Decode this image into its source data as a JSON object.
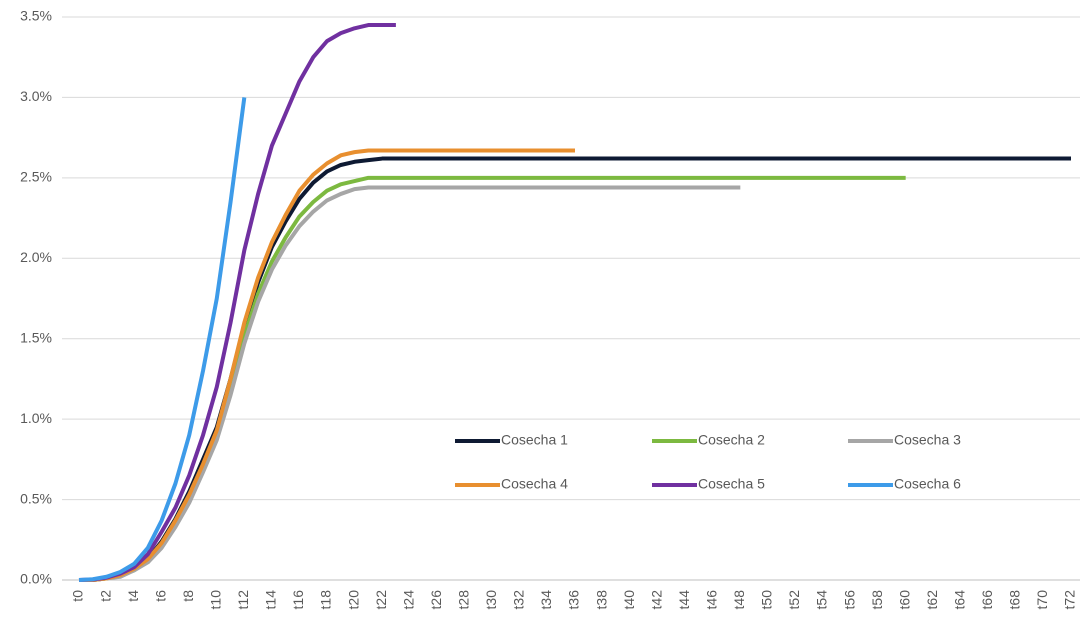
{
  "chart_data": {
    "type": "line",
    "categories": [
      "t0",
      null,
      "t2",
      null,
      "t4",
      null,
      "t6",
      null,
      "t8",
      null,
      "t10",
      null,
      "t12",
      null,
      "t14",
      null,
      "t16",
      null,
      "t18",
      null,
      "t20",
      null,
      "t22",
      null,
      "t24",
      null,
      "t26",
      null,
      "t28",
      null,
      "t30",
      null,
      "t32",
      null,
      "t34",
      null,
      "t36",
      null,
      "t38",
      null,
      "t40",
      null,
      "t42",
      null,
      "t44",
      null,
      "t46",
      null,
      "t48",
      null,
      "t50",
      null,
      "t52",
      null,
      "t54",
      null,
      "t56",
      null,
      "t58",
      null,
      "t60",
      null,
      "t62",
      null,
      "t64",
      null,
      "t66",
      null,
      "t68",
      null,
      "t70",
      null,
      "t72"
    ],
    "ylim": [
      0,
      3.5
    ],
    "yticks": [
      {
        "value": 0,
        "label": "0.0%"
      },
      {
        "value": 0.5,
        "label": "0.5%"
      },
      {
        "value": 1,
        "label": "1.0%"
      },
      {
        "value": 1.5,
        "label": "1.5%"
      },
      {
        "value": 2,
        "label": "2.0%"
      },
      {
        "value": 2.5,
        "label": "2.5%"
      },
      {
        "value": 3,
        "label": "3.0%"
      },
      {
        "value": 3.5,
        "label": "3.5%"
      }
    ],
    "grid": true,
    "legend": "lower right",
    "series": [
      {
        "name": "Cosecha 1",
        "color": "#0e1a33",
        "values": [
          0,
          0,
          0.01,
          0.03,
          0.07,
          0.13,
          0.24,
          0.38,
          0.55,
          0.75,
          0.95,
          1.25,
          1.58,
          1.85,
          2.07,
          2.23,
          2.37,
          2.47,
          2.54,
          2.58,
          2.6,
          2.61,
          2.62,
          2.62,
          2.62,
          2.62,
          2.62,
          2.62,
          2.62,
          2.62,
          2.62,
          2.62,
          2.62,
          2.62,
          2.62,
          2.62,
          2.62,
          2.62,
          2.62,
          2.62,
          2.62,
          2.62,
          2.62,
          2.62,
          2.62,
          2.62,
          2.62,
          2.62,
          2.62,
          2.62,
          2.62,
          2.62,
          2.62,
          2.62,
          2.62,
          2.62,
          2.62,
          2.62,
          2.62,
          2.62,
          2.62,
          2.62,
          2.62,
          2.62,
          2.62,
          2.62,
          2.62,
          2.62,
          2.62,
          2.62,
          2.62,
          2.62,
          2.62
        ]
      },
      {
        "name": "Cosecha 2",
        "color": "#7cb940",
        "values": [
          0,
          0,
          0.01,
          0.03,
          0.06,
          0.12,
          0.22,
          0.35,
          0.5,
          0.7,
          0.9,
          1.2,
          1.52,
          1.78,
          1.98,
          2.13,
          2.26,
          2.35,
          2.42,
          2.46,
          2.48,
          2.5,
          2.5,
          2.5,
          2.5,
          2.5,
          2.5,
          2.5,
          2.5,
          2.5,
          2.5,
          2.5,
          2.5,
          2.5,
          2.5,
          2.5,
          2.5,
          2.5,
          2.5,
          2.5,
          2.5,
          2.5,
          2.5,
          2.5,
          2.5,
          2.5,
          2.5,
          2.5,
          2.5,
          2.5,
          2.5,
          2.5,
          2.5,
          2.5,
          2.5,
          2.5,
          2.5,
          2.5,
          2.5,
          2.5,
          2.5,
          null,
          null,
          null,
          null,
          null,
          null,
          null,
          null,
          null,
          null,
          null,
          null
        ]
      },
      {
        "name": "Cosecha 3",
        "color": "#a6a6a6",
        "values": [
          0,
          0,
          0.01,
          0.02,
          0.06,
          0.11,
          0.2,
          0.33,
          0.48,
          0.67,
          0.87,
          1.15,
          1.47,
          1.73,
          1.93,
          2.08,
          2.2,
          2.29,
          2.36,
          2.4,
          2.43,
          2.44,
          2.44,
          2.44,
          2.44,
          2.44,
          2.44,
          2.44,
          2.44,
          2.44,
          2.44,
          2.44,
          2.44,
          2.44,
          2.44,
          2.44,
          2.44,
          2.44,
          2.44,
          2.44,
          2.44,
          2.44,
          2.44,
          2.44,
          2.44,
          2.44,
          2.44,
          2.44,
          2.44,
          null,
          null,
          null,
          null,
          null,
          null,
          null,
          null,
          null,
          null,
          null,
          null,
          null,
          null,
          null,
          null,
          null,
          null,
          null,
          null,
          null,
          null,
          null,
          null
        ]
      },
      {
        "name": "Cosecha 4",
        "color": "#e88f2f",
        "values": [
          0,
          0,
          0.01,
          0.03,
          0.07,
          0.13,
          0.23,
          0.37,
          0.53,
          0.72,
          0.93,
          1.25,
          1.6,
          1.88,
          2.1,
          2.27,
          2.42,
          2.52,
          2.59,
          2.64,
          2.66,
          2.67,
          2.67,
          2.67,
          2.67,
          2.67,
          2.67,
          2.67,
          2.67,
          2.67,
          2.67,
          2.67,
          2.67,
          2.67,
          2.67,
          2.67,
          2.67,
          null,
          null,
          null,
          null,
          null,
          null,
          null,
          null,
          null,
          null,
          null,
          null,
          null,
          null,
          null,
          null,
          null,
          null,
          null,
          null,
          null,
          null,
          null,
          null,
          null,
          null,
          null,
          null,
          null,
          null,
          null,
          null,
          null,
          null,
          null,
          null
        ]
      },
      {
        "name": "Cosecha 5",
        "color": "#7030a0",
        "values": [
          0,
          0.003,
          0.015,
          0.04,
          0.08,
          0.16,
          0.3,
          0.45,
          0.65,
          0.9,
          1.2,
          1.6,
          2.05,
          2.4,
          2.7,
          2.9,
          3.1,
          3.25,
          3.35,
          3.4,
          3.43,
          3.45,
          3.45,
          3.45,
          null,
          null,
          null,
          null,
          null,
          null,
          null,
          null,
          null,
          null,
          null,
          null,
          null,
          null,
          null,
          null,
          null,
          null,
          null,
          null,
          null,
          null,
          null,
          null,
          null,
          null,
          null,
          null,
          null,
          null,
          null,
          null,
          null,
          null,
          null,
          null,
          null,
          null,
          null,
          null,
          null,
          null,
          null,
          null,
          null,
          null,
          null,
          null,
          null
        ]
      },
      {
        "name": "Cosecha 6",
        "color": "#3d9be9",
        "values": [
          0,
          0.005,
          0.02,
          0.05,
          0.1,
          0.2,
          0.37,
          0.6,
          0.9,
          1.3,
          1.75,
          2.35,
          3.0,
          null,
          null,
          null,
          null,
          null,
          null,
          null,
          null,
          null,
          null,
          null,
          null,
          null,
          null,
          null,
          null,
          null,
          null,
          null,
          null,
          null,
          null,
          null,
          null,
          null,
          null,
          null,
          null,
          null,
          null,
          null,
          null,
          null,
          null,
          null,
          null,
          null,
          null,
          null,
          null,
          null,
          null,
          null,
          null,
          null,
          null,
          null,
          null,
          null,
          null,
          null,
          null,
          null,
          null,
          null,
          null,
          null,
          null,
          null,
          null
        ]
      }
    ]
  }
}
